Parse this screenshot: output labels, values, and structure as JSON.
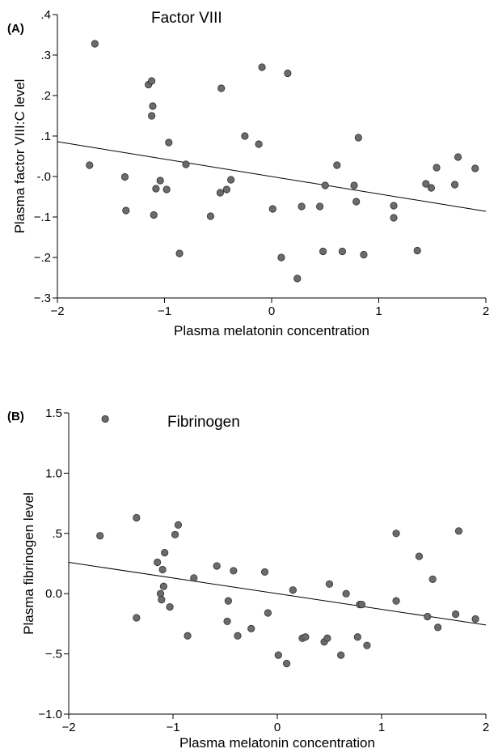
{
  "chart_data": [
    {
      "type": "scatter",
      "panel_label": "(A)",
      "title": "Factor VIII",
      "xlabel": "Plasma melatonin concentration",
      "ylabel": "Plasma factor VIII:C level",
      "xlim": [
        -2,
        2
      ],
      "ylim": [
        -0.3,
        0.4
      ],
      "x_ticks": [
        -2,
        -1,
        0,
        1,
        2
      ],
      "x_tick_labels": [
        "−2",
        "−1",
        "0",
        "1",
        "2"
      ],
      "y_ticks": [
        0.4,
        0.3,
        0.2,
        0.1,
        0.0,
        -0.1,
        -0.2,
        -0.3
      ],
      "y_tick_labels": [
        ".4",
        ".3",
        ".2",
        ".1",
        "-.0",
        "−.1",
        "−.2",
        "−.3"
      ],
      "grid": false,
      "fit_line": {
        "x": [
          -2,
          2
        ],
        "y": [
          0.086,
          -0.086
        ]
      },
      "points": [
        {
          "x": -1.7,
          "y": 0.028
        },
        {
          "x": -1.65,
          "y": 0.328
        },
        {
          "x": -1.37,
          "y": -0.001
        },
        {
          "x": -1.36,
          "y": -0.084
        },
        {
          "x": -1.15,
          "y": 0.227
        },
        {
          "x": -1.12,
          "y": 0.236
        },
        {
          "x": -1.12,
          "y": 0.15
        },
        {
          "x": -1.11,
          "y": 0.174
        },
        {
          "x": -1.1,
          "y": -0.095
        },
        {
          "x": -1.08,
          "y": -0.03
        },
        {
          "x": -1.04,
          "y": -0.01
        },
        {
          "x": -0.98,
          "y": -0.032
        },
        {
          "x": -0.96,
          "y": 0.084
        },
        {
          "x": -0.86,
          "y": -0.19
        },
        {
          "x": -0.8,
          "y": 0.03
        },
        {
          "x": -0.57,
          "y": -0.098
        },
        {
          "x": -0.48,
          "y": -0.04
        },
        {
          "x": -0.47,
          "y": 0.218
        },
        {
          "x": -0.42,
          "y": -0.032
        },
        {
          "x": -0.38,
          "y": -0.008
        },
        {
          "x": -0.25,
          "y": 0.1
        },
        {
          "x": -0.12,
          "y": 0.08
        },
        {
          "x": -0.09,
          "y": 0.27
        },
        {
          "x": 0.01,
          "y": -0.08
        },
        {
          "x": 0.09,
          "y": -0.2
        },
        {
          "x": 0.15,
          "y": 0.255
        },
        {
          "x": 0.24,
          "y": -0.252
        },
        {
          "x": 0.28,
          "y": -0.074
        },
        {
          "x": 0.45,
          "y": -0.074
        },
        {
          "x": 0.48,
          "y": -0.185
        },
        {
          "x": 0.5,
          "y": -0.022
        },
        {
          "x": 0.61,
          "y": 0.028
        },
        {
          "x": 0.66,
          "y": -0.185
        },
        {
          "x": 0.77,
          "y": -0.022
        },
        {
          "x": 0.79,
          "y": -0.062
        },
        {
          "x": 0.81,
          "y": 0.096
        },
        {
          "x": 0.86,
          "y": -0.193
        },
        {
          "x": 1.14,
          "y": -0.072
        },
        {
          "x": 1.14,
          "y": -0.102
        },
        {
          "x": 1.36,
          "y": -0.183
        },
        {
          "x": 1.44,
          "y": -0.018
        },
        {
          "x": 1.49,
          "y": -0.028
        },
        {
          "x": 1.54,
          "y": 0.022
        },
        {
          "x": 1.71,
          "y": -0.02
        },
        {
          "x": 1.74,
          "y": 0.048
        },
        {
          "x": 1.9,
          "y": 0.02
        }
      ]
    },
    {
      "type": "scatter",
      "panel_label": "(B)",
      "title": "Fibrinogen",
      "xlabel": "Plasma melatonin concentration",
      "ylabel": "Plasma fibrinogen level",
      "xlim": [
        -2,
        2
      ],
      "ylim": [
        -1.0,
        1.5
      ],
      "x_ticks": [
        -2,
        -1,
        0,
        1,
        2
      ],
      "x_tick_labels": [
        "−2",
        "−1",
        "0",
        "1",
        "2"
      ],
      "y_ticks": [
        1.5,
        1.0,
        0.5,
        0.0,
        -0.5,
        -1.0
      ],
      "y_tick_labels": [
        "1.5",
        "1.0",
        ".5",
        "0.0",
        "−.5",
        "−1.0"
      ],
      "grid": false,
      "fit_line": {
        "x": [
          -2,
          2
        ],
        "y": [
          0.26,
          -0.26
        ]
      },
      "points": [
        {
          "x": -1.7,
          "y": 0.48
        },
        {
          "x": -1.65,
          "y": 1.45
        },
        {
          "x": -1.35,
          "y": 0.63
        },
        {
          "x": -1.35,
          "y": -0.2
        },
        {
          "x": -1.15,
          "y": 0.26
        },
        {
          "x": -1.12,
          "y": 0.0
        },
        {
          "x": -1.11,
          "y": -0.05
        },
        {
          "x": -1.1,
          "y": 0.2
        },
        {
          "x": -1.09,
          "y": 0.06
        },
        {
          "x": -1.08,
          "y": 0.34
        },
        {
          "x": -1.03,
          "y": -0.11
        },
        {
          "x": -0.98,
          "y": 0.49
        },
        {
          "x": -0.95,
          "y": 0.57
        },
        {
          "x": -0.86,
          "y": -0.35
        },
        {
          "x": -0.8,
          "y": 0.13
        },
        {
          "x": -0.58,
          "y": 0.23
        },
        {
          "x": -0.48,
          "y": -0.23
        },
        {
          "x": -0.47,
          "y": -0.06
        },
        {
          "x": -0.42,
          "y": 0.19
        },
        {
          "x": -0.38,
          "y": -0.35
        },
        {
          "x": -0.25,
          "y": -0.29
        },
        {
          "x": -0.12,
          "y": 0.18
        },
        {
          "x": -0.09,
          "y": -0.16
        },
        {
          "x": 0.01,
          "y": -0.51
        },
        {
          "x": 0.09,
          "y": -0.58
        },
        {
          "x": 0.15,
          "y": 0.03
        },
        {
          "x": 0.24,
          "y": -0.37
        },
        {
          "x": 0.27,
          "y": -0.36
        },
        {
          "x": 0.45,
          "y": -0.4
        },
        {
          "x": 0.48,
          "y": -0.37
        },
        {
          "x": 0.5,
          "y": 0.08
        },
        {
          "x": 0.61,
          "y": -0.51
        },
        {
          "x": 0.66,
          "y": 0.0
        },
        {
          "x": 0.77,
          "y": -0.36
        },
        {
          "x": 0.79,
          "y": -0.09
        },
        {
          "x": 0.81,
          "y": -0.09
        },
        {
          "x": 0.86,
          "y": -0.43
        },
        {
          "x": 1.14,
          "y": 0.5
        },
        {
          "x": 1.14,
          "y": -0.06
        },
        {
          "x": 1.36,
          "y": 0.31
        },
        {
          "x": 1.44,
          "y": -0.19
        },
        {
          "x": 1.49,
          "y": 0.12
        },
        {
          "x": 1.54,
          "y": -0.28
        },
        {
          "x": 1.71,
          "y": -0.17
        },
        {
          "x": 1.74,
          "y": 0.52
        },
        {
          "x": 1.9,
          "y": -0.21
        }
      ]
    }
  ]
}
